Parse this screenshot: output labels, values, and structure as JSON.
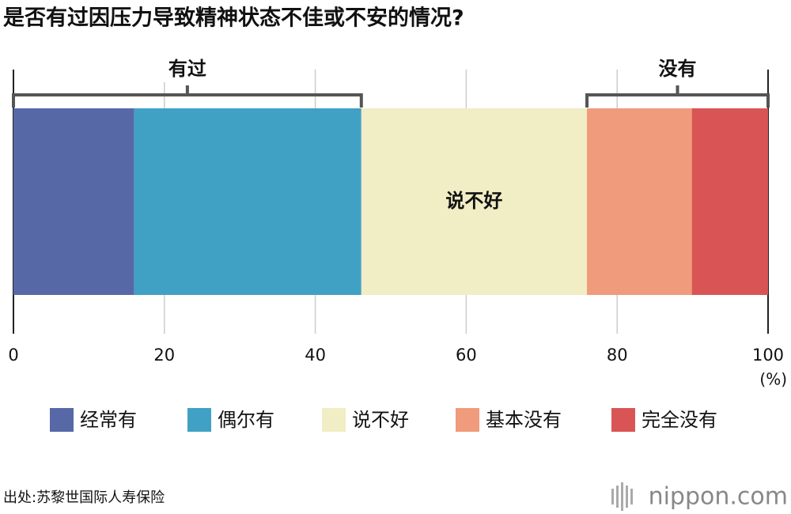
{
  "chart_data": {
    "type": "stacked-bar",
    "title": "是否有过因压力导致精神状态不佳或不安的情况?",
    "series": [
      {
        "name": "经常有",
        "color": "#5669a6",
        "values": [
          16
        ]
      },
      {
        "name": "偶尔有",
        "color": "#40a1c4",
        "values": [
          30.1
        ]
      },
      {
        "name": "说不好",
        "color": "#f1edc4",
        "values": [
          29.9
        ]
      },
      {
        "name": "基本没有",
        "color": "#f09b7b",
        "values": [
          13.9
        ]
      },
      {
        "name": "完全没有",
        "color": "#d95555",
        "values": [
          10.1
        ]
      }
    ],
    "groups": [
      "有过",
      "没有"
    ],
    "xlim": [
      0,
      100
    ],
    "xticks": [
      0,
      20,
      40,
      60,
      80,
      100
    ],
    "xlabel": "(%)",
    "grid": true,
    "source": "出处:苏黎世国际人寿保险",
    "logo": "nippon.com"
  }
}
